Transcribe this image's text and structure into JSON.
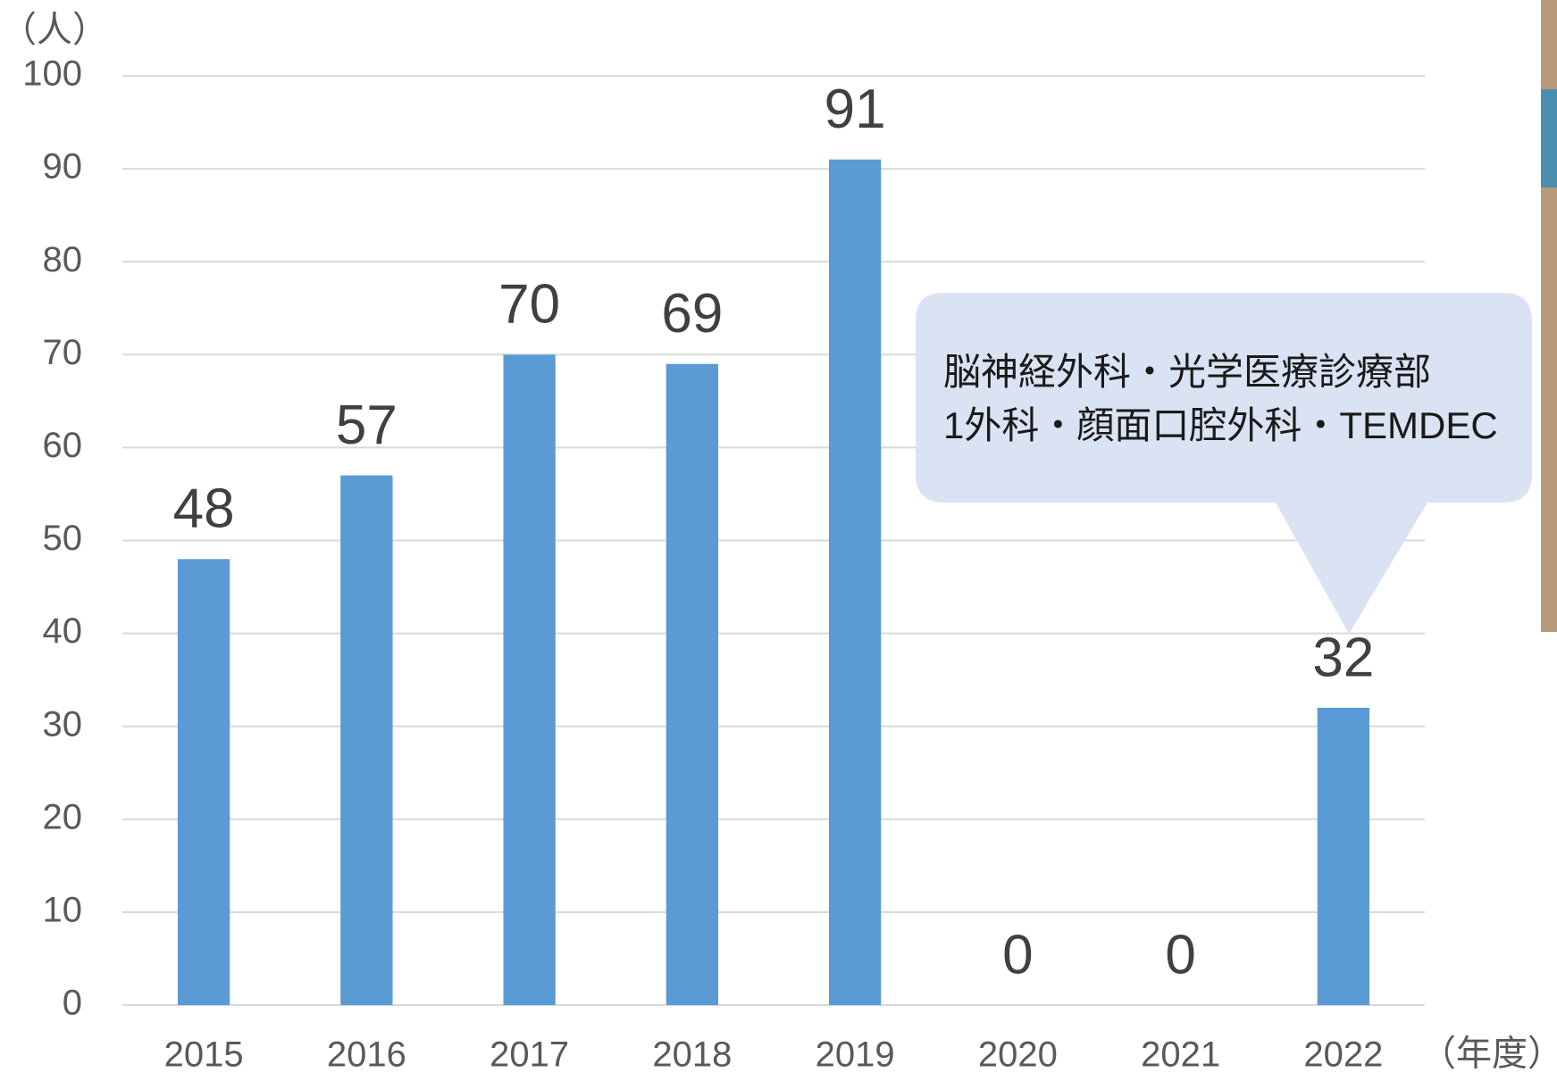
{
  "chart_data": {
    "type": "bar",
    "y_label": "（人）",
    "x_label": "（年度）",
    "categories": [
      "2015",
      "2016",
      "2017",
      "2018",
      "2019",
      "2020",
      "2021",
      "2022"
    ],
    "values": [
      48,
      57,
      70,
      69,
      91,
      0,
      0,
      32
    ],
    "color": "#5b9bd5",
    "ylim": [
      0,
      100
    ],
    "yticks": [
      0,
      10,
      20,
      30,
      40,
      50,
      60,
      70,
      80,
      90,
      100
    ],
    "grid": true,
    "annotation": [
      "脳神経外科・光学医療診療部",
      "1外科・顔面口腔外科・TEMDEC"
    ]
  }
}
